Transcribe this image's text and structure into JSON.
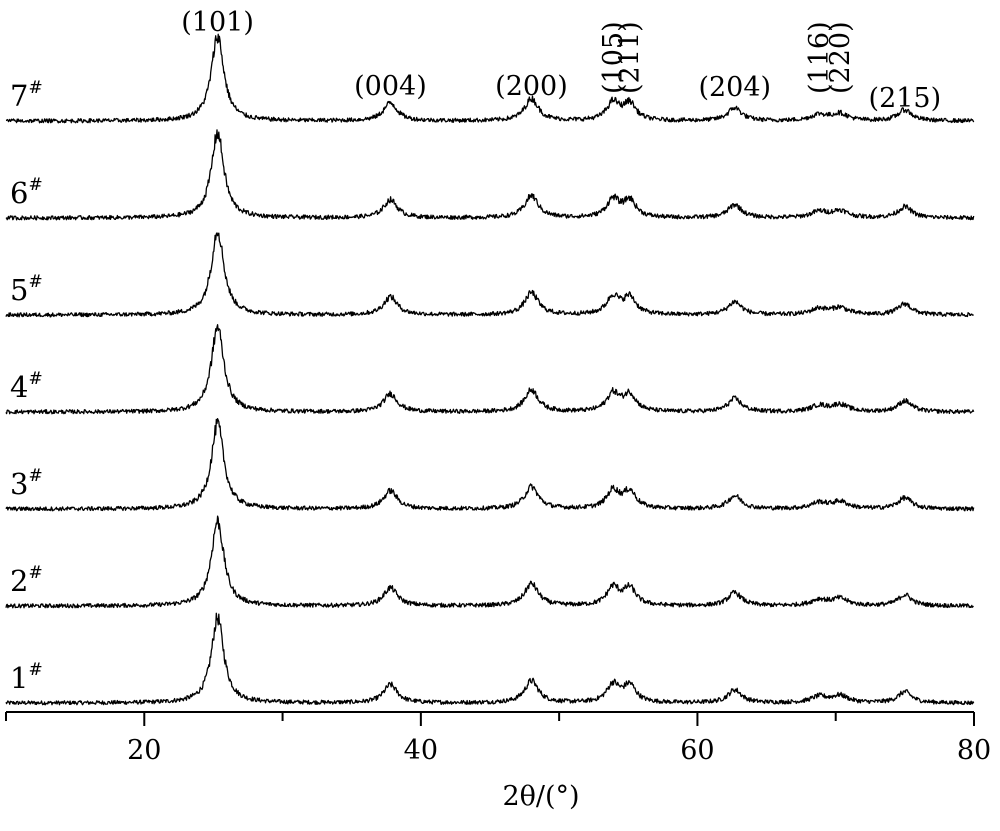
{
  "chart_data": {
    "type": "line",
    "title": "",
    "xlabel": "2θ/(°)",
    "xlim": [
      10,
      80
    ],
    "x_ticks": [
      20,
      40,
      60,
      80
    ],
    "y_axis_shown": false,
    "grid": false,
    "offset_stacked": true,
    "series": [
      {
        "label": "1",
        "marker": "#"
      },
      {
        "label": "2",
        "marker": "#"
      },
      {
        "label": "3",
        "marker": "#"
      },
      {
        "label": "4",
        "marker": "#"
      },
      {
        "label": "5",
        "marker": "#"
      },
      {
        "label": "6",
        "marker": "#"
      },
      {
        "label": "7",
        "marker": "#"
      }
    ],
    "peaks": [
      {
        "x": 25.3,
        "height": 85,
        "width": 0.55
      },
      {
        "x": 37.8,
        "height": 18,
        "width": 0.6
      },
      {
        "x": 48.0,
        "height": 22,
        "width": 0.6
      },
      {
        "x": 53.9,
        "height": 18,
        "width": 0.55
      },
      {
        "x": 55.1,
        "height": 17,
        "width": 0.55
      },
      {
        "x": 62.7,
        "height": 13,
        "width": 0.6
      },
      {
        "x": 68.8,
        "height": 6,
        "width": 0.7
      },
      {
        "x": 70.3,
        "height": 7,
        "width": 0.7
      },
      {
        "x": 75.0,
        "height": 11,
        "width": 0.6
      }
    ],
    "peak_labels": [
      {
        "text": "(101)",
        "x": 25.3
      },
      {
        "text": "(004)",
        "x": 37.8
      },
      {
        "text": "(200)",
        "x": 48.0
      },
      {
        "text": "(105)",
        "x": 53.9,
        "vertical": true
      },
      {
        "text": "(211)",
        "x": 55.1,
        "vertical": true
      },
      {
        "text": "(204)",
        "x": 62.7
      },
      {
        "text": "(116)",
        "x": 68.8,
        "vertical": true
      },
      {
        "text": "(220)",
        "x": 70.3,
        "vertical": true
      },
      {
        "text": "(215)",
        "x": 75.0
      }
    ]
  }
}
